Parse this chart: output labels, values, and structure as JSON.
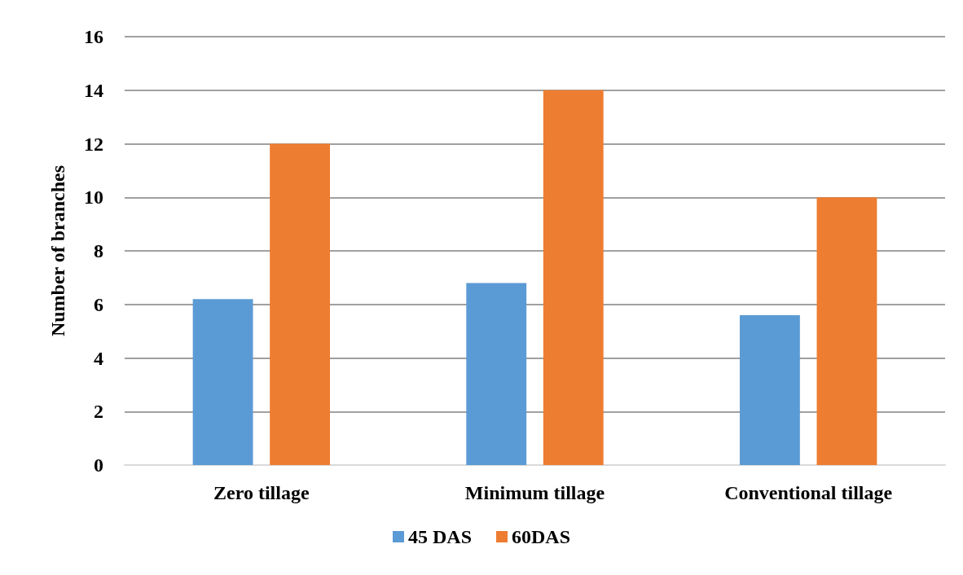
{
  "chart_data": {
    "type": "bar",
    "ylabel": "Number of branches",
    "categories": [
      "Zero tillage",
      "Minimum tillage",
      "Conventional tillage"
    ],
    "series": [
      {
        "name": "45 DAS",
        "color": "#5b9bd5",
        "values": [
          6.2,
          6.8,
          5.6
        ]
      },
      {
        "name": "60DAS",
        "color": "#ed7d31",
        "values": [
          12,
          14,
          10
        ]
      }
    ],
    "ylim": [
      0,
      16
    ],
    "yticks": [
      0,
      2,
      4,
      6,
      8,
      10,
      12,
      14,
      16
    ],
    "grid": "y",
    "legend": "bottom"
  }
}
